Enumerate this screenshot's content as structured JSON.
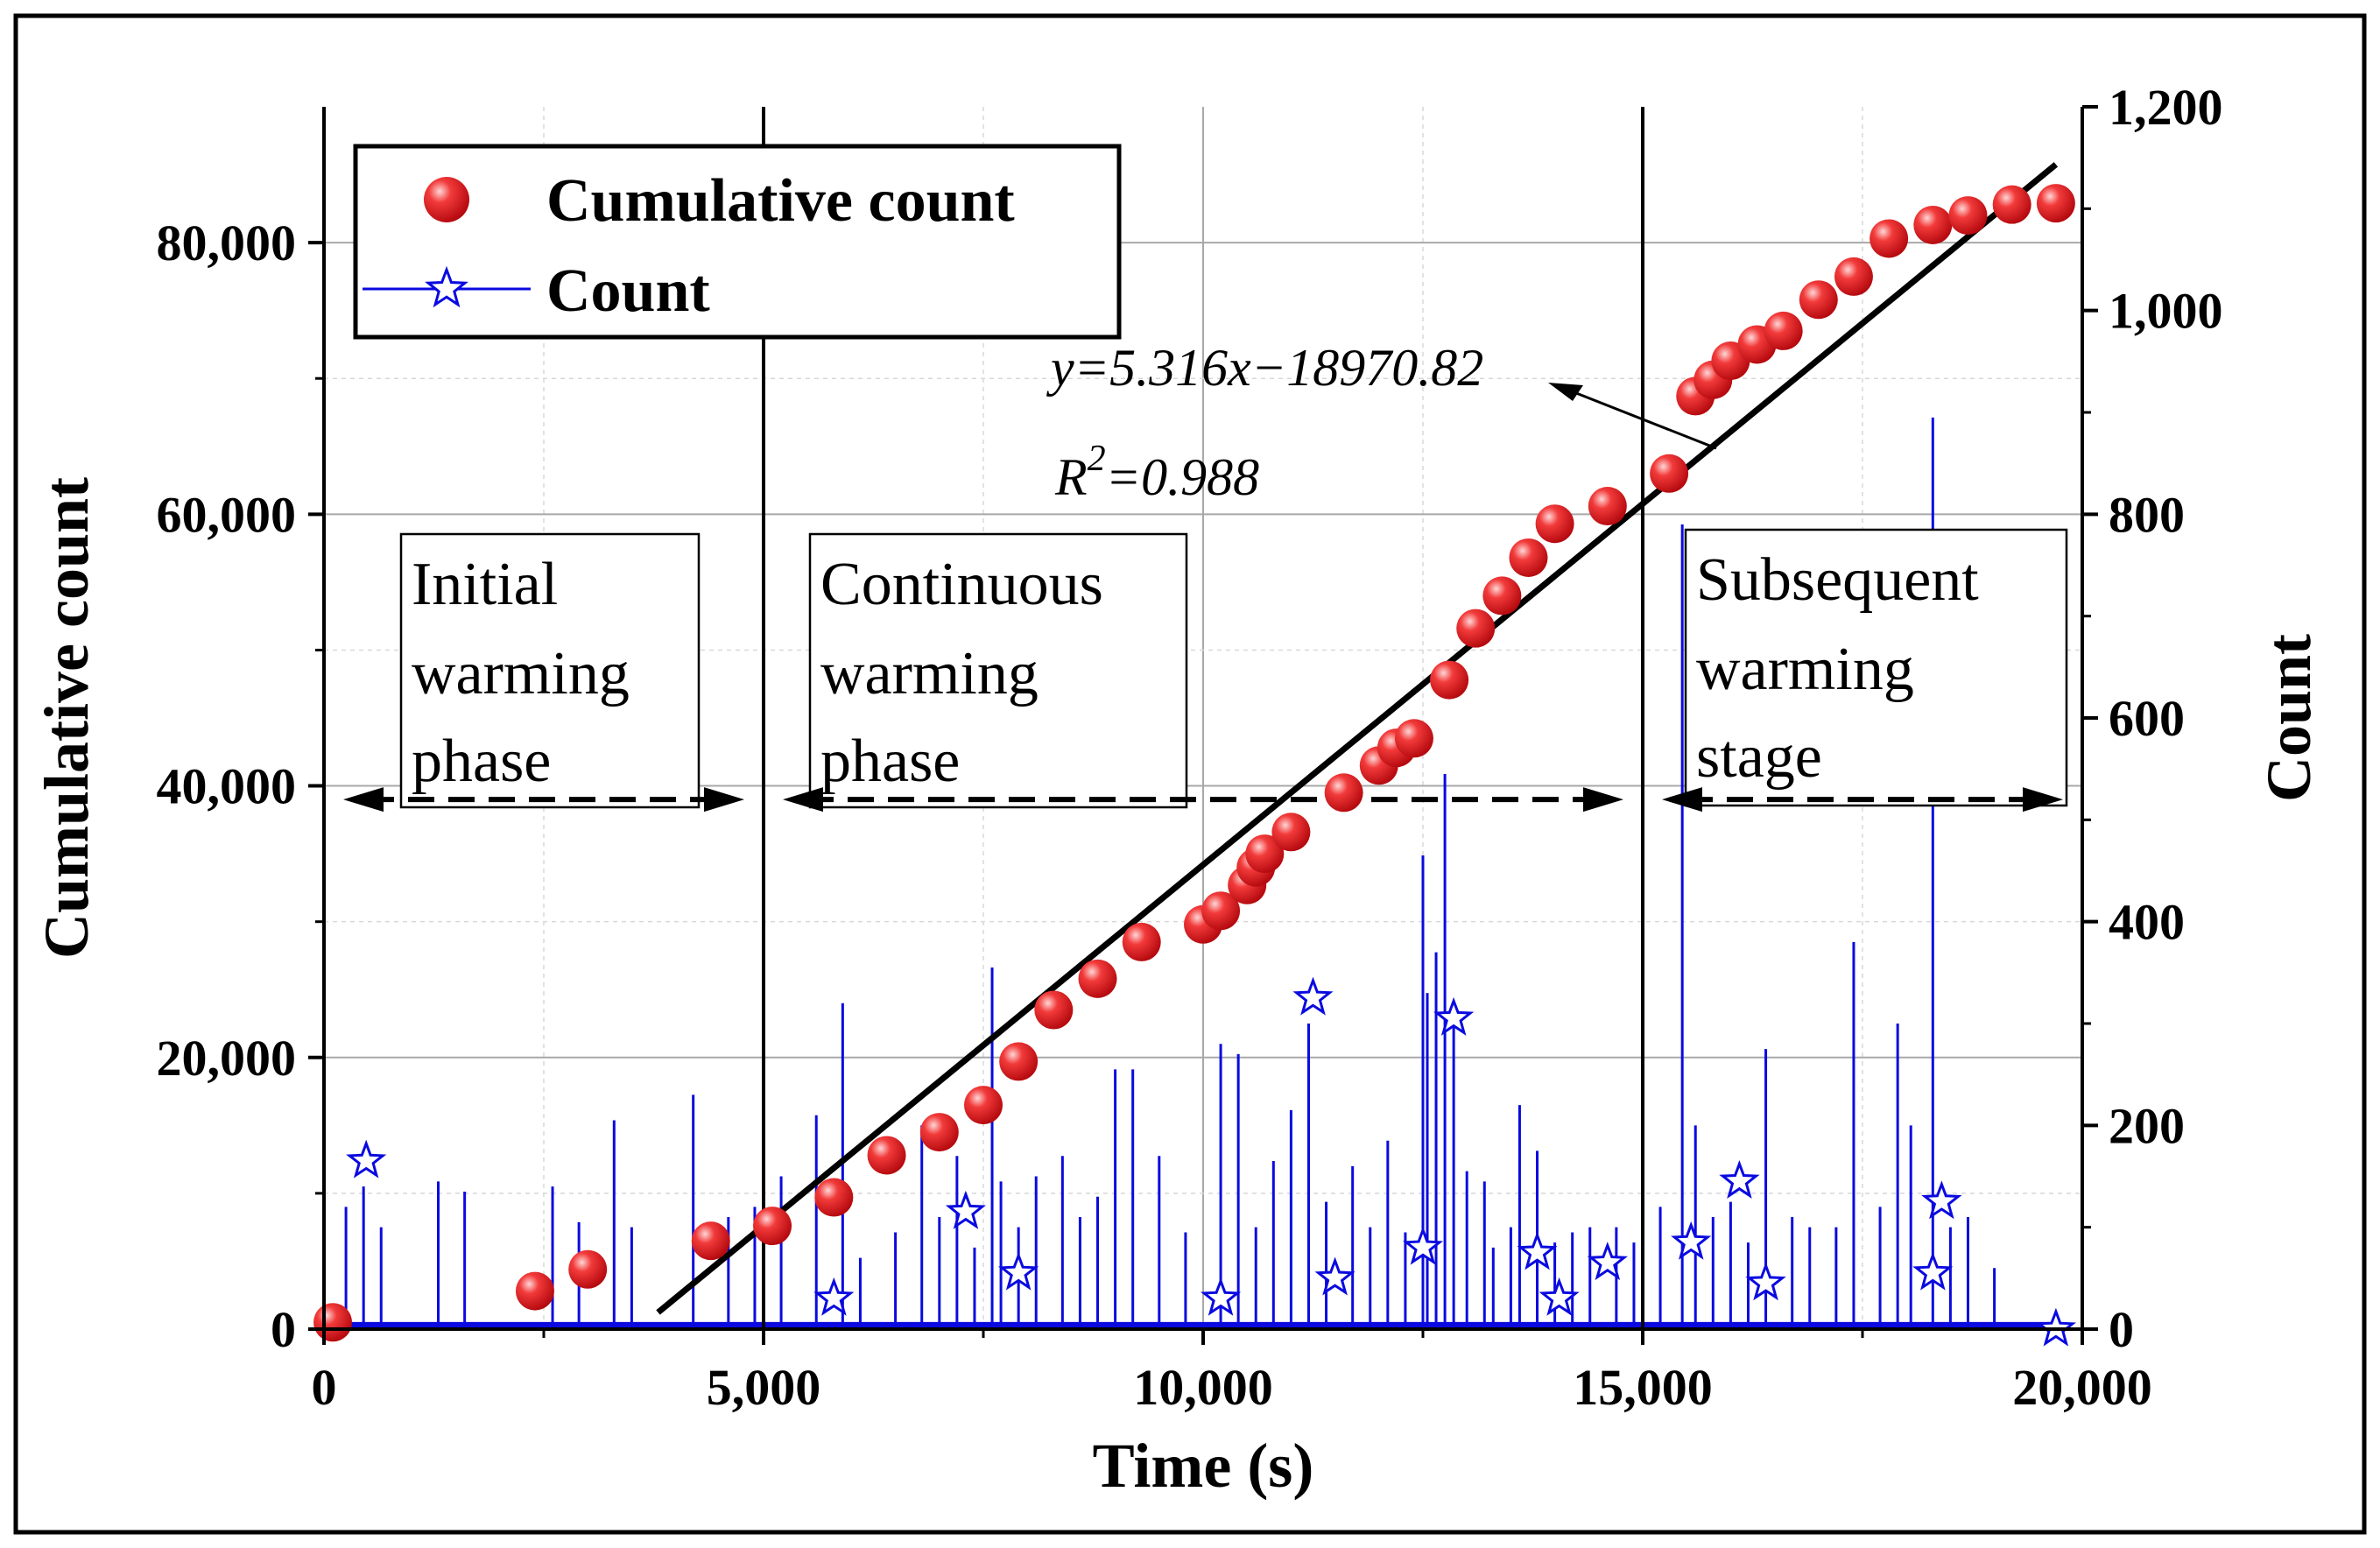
{
  "chart_data": {
    "type": "scatter",
    "title": "",
    "xlabel": "Time (s)",
    "ylabel": "Cumulative count",
    "y2label": "Count",
    "xlim": [
      0,
      20000
    ],
    "ylim": [
      0,
      90000
    ],
    "y2lim": [
      0,
      1200
    ],
    "xticks": [
      "0",
      "5,000",
      "10,000",
      "15,000",
      "20,000"
    ],
    "yticks": [
      "0",
      "20,000",
      "40,000",
      "60,000",
      "80,000"
    ],
    "y2ticks": [
      "0",
      "200",
      "400",
      "600",
      "800",
      "1,000",
      "1,200"
    ],
    "grid": true,
    "legend": {
      "position": "top-left",
      "entries": [
        "Cumulative count",
        "Count"
      ]
    },
    "fit": {
      "equation": "y=5.316x−18970.82",
      "r2_prefix": "R",
      "r2_sup": "2",
      "r2_value": "=0.988",
      "slope": 5.316,
      "intercept": -18970.82,
      "x_range": [
        3800,
        19700
      ]
    },
    "phase_boundaries": [
      5000,
      15000
    ],
    "phases": [
      {
        "lines": [
          "Initial",
          "warming",
          "phase"
        ],
        "range": [
          0,
          5000
        ]
      },
      {
        "lines": [
          "Continuous",
          "warming",
          "phase"
        ],
        "range": [
          5000,
          15000
        ]
      },
      {
        "lines": [
          "Subsequent",
          "warming",
          "stage"
        ],
        "range": [
          15000,
          20000
        ]
      }
    ],
    "arrow_level": 39000,
    "series": [
      {
        "name": "Cumulative count",
        "axis": "left",
        "color": "#e8141c",
        "x": [
          100,
          2400,
          3000,
          4400,
          5100,
          5800,
          6400,
          7000,
          7500,
          7900,
          8300,
          8800,
          9300,
          10000,
          10200,
          10500,
          10600,
          10700,
          11000,
          11600,
          12000,
          12200,
          12400,
          12800,
          13100,
          13400,
          13700,
          14000,
          14600,
          15300,
          15600,
          15800,
          16000,
          16300,
          16600,
          17000,
          17400,
          17800,
          18300,
          18700,
          19200,
          19700
        ],
        "y": [
          500,
          2800,
          4400,
          6500,
          7600,
          9700,
          12800,
          14500,
          16500,
          19700,
          23500,
          25800,
          28500,
          29800,
          30800,
          32700,
          34000,
          35000,
          36600,
          39500,
          41500,
          42800,
          43500,
          47800,
          51600,
          54000,
          56800,
          59300,
          60600,
          63000,
          68700,
          69900,
          71300,
          72500,
          73500,
          75800,
          77500,
          80300,
          81300,
          82000,
          82800,
          82900
        ]
      },
      {
        "name": "Count",
        "axis": "right",
        "color": "#0a0ae0",
        "x": [
          250,
          450,
          650,
          1300,
          1600,
          2600,
          2900,
          3300,
          3500,
          4200,
          4600,
          4900,
          5200,
          5600,
          5900,
          6100,
          6500,
          6800,
          7000,
          7200,
          7400,
          7600,
          7700,
          7900,
          8100,
          8400,
          8600,
          8800,
          9000,
          9200,
          9500,
          9800,
          10200,
          10400,
          10600,
          10800,
          11000,
          11200,
          11400,
          11700,
          11900,
          12100,
          12300,
          12500,
          12550,
          12650,
          12750,
          12850,
          13000,
          13200,
          13300,
          13500,
          13600,
          13800,
          14000,
          14200,
          14400,
          14700,
          14900,
          15200,
          15450,
          15600,
          15800,
          16000,
          16200,
          16400,
          16700,
          16900,
          17200,
          17400,
          17700,
          17900,
          18050,
          18300,
          18500,
          18700,
          19000
        ],
        "y": [
          120,
          140,
          100,
          145,
          135,
          140,
          105,
          205,
          100,
          230,
          110,
          120,
          150,
          210,
          320,
          70,
          95,
          200,
          110,
          170,
          80,
          355,
          145,
          100,
          150,
          170,
          110,
          130,
          255,
          255,
          170,
          95,
          280,
          270,
          100,
          165,
          215,
          300,
          125,
          160,
          100,
          185,
          95,
          465,
          330,
          370,
          545,
          320,
          155,
          145,
          80,
          100,
          220,
          175,
          85,
          95,
          100,
          100,
          85,
          120,
          790,
          200,
          110,
          125,
          85,
          275,
          110,
          100,
          100,
          380,
          120,
          300,
          200,
          895,
          100,
          110,
          60
        ],
        "markers_x": [
          480,
          5800,
          7300,
          7900,
          10200,
          11250,
          11500,
          12500,
          12850,
          13800,
          14050,
          14600,
          15550,
          16100,
          16400,
          18300,
          18400,
          19700
        ],
        "markers_y": [
          165,
          30,
          115,
          55,
          30,
          325,
          50,
          80,
          305,
          75,
          30,
          65,
          85,
          145,
          45,
          55,
          125,
          0
        ]
      }
    ]
  }
}
